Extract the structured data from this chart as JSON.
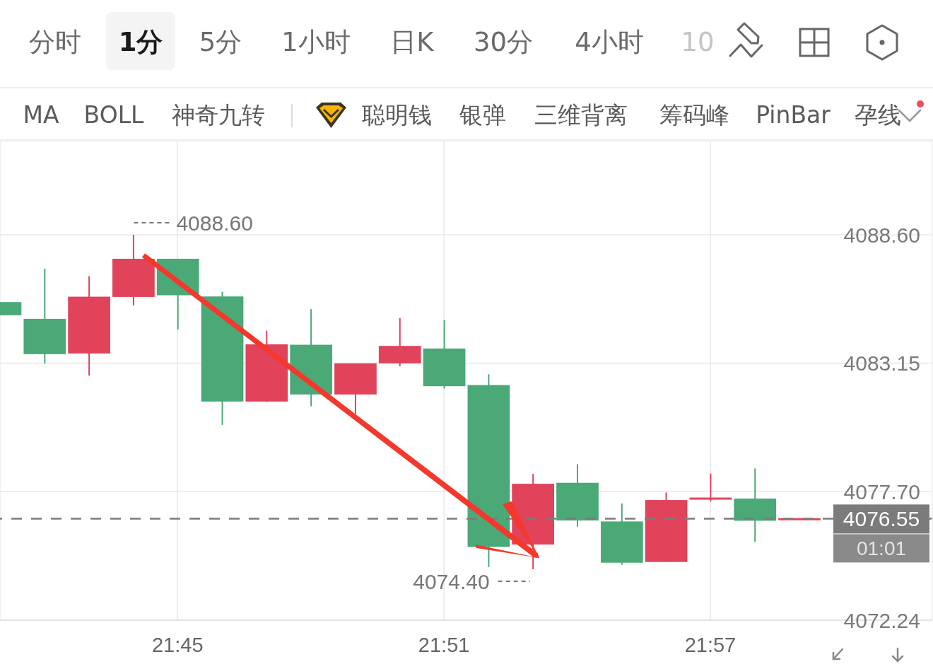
{
  "chart_data": {
    "type": "candlestick",
    "x": [
      21.68333,
      21.7,
      21.71667,
      21.73333,
      21.75,
      21.76667,
      21.78333,
      21.8,
      21.81667,
      21.83333,
      21.85,
      21.86667,
      21.88333,
      21.9,
      21.91667,
      21.93333,
      21.95,
      21.96667,
      21.98333
    ],
    "ohlc": [
      [
        4085.74,
        4085.74,
        4085.18,
        4085.18
      ],
      [
        4085.03,
        4087.16,
        4083.13,
        4083.53
      ],
      [
        4083.56,
        4086.84,
        4082.62,
        4085.97
      ],
      [
        4085.96,
        4088.6,
        4085.6,
        4087.58
      ],
      [
        4087.58,
        4087.58,
        4084.58,
        4086.03
      ],
      [
        4085.98,
        4086.18,
        4080.53,
        4081.52
      ],
      [
        4081.52,
        4084.53,
        4081.5,
        4083.95
      ],
      [
        4083.93,
        4085.44,
        4081.32,
        4081.82
      ],
      [
        4081.82,
        4083.14,
        4081.0,
        4083.14
      ],
      [
        4083.14,
        4085.06,
        4083.02,
        4083.88
      ],
      [
        4083.77,
        4084.98,
        4082.07,
        4082.17
      ],
      [
        4082.22,
        4082.68,
        4074.5,
        4075.35
      ],
      [
        4075.45,
        4078.45,
        4074.4,
        4078.03
      ],
      [
        4078.07,
        4078.86,
        4076.21,
        4076.47
      ],
      [
        4076.43,
        4077.19,
        4074.59,
        4074.68
      ],
      [
        4074.71,
        4077.66,
        4074.71,
        4077.34
      ],
      [
        4077.4,
        4078.46,
        4077.28,
        4077.4
      ],
      [
        4077.4,
        4078.68,
        4075.56,
        4076.46
      ],
      [
        4076.5,
        4076.55,
        4076.5,
        4076.55
      ]
    ],
    "colors": [
      "#4aa977",
      "#4aa977",
      "#e0435a",
      "#e0435a",
      "#4aa977",
      "#4aa977",
      "#e0435a",
      "#4aa977",
      "#e0435a",
      "#e0435a",
      "#4aa977",
      "#4aa977",
      "#e0435a",
      "#4aa977",
      "#4aa977",
      "#e0435a",
      "#e0435a",
      "#4aa977",
      "#e0435a"
    ],
    "xlim": [
      21.68333,
      22.03333
    ],
    "xticks": [
      {
        "value": 21.75,
        "label": "21:45"
      },
      {
        "value": 21.85,
        "label": "21:51"
      },
      {
        "value": 21.95,
        "label": "21:57"
      }
    ],
    "ylim": [
      4072.24,
      4092.56
    ],
    "yticks": [
      4072.24,
      {
        "value": 4077.7,
        "label": "4077.70"
      },
      4083.15,
      {
        "value": 4088.6,
        "label": "4088.60"
      }
    ],
    "grid": true,
    "ref_lines": [
      {
        "axis": "y",
        "value": 4076.55,
        "label": "4076.55",
        "color": "#7b7b7b",
        "line_style": "dashed"
      }
    ],
    "annotations": [
      {
        "text": "4088.60",
        "x": 21.73333,
        "y": 4088.6
      },
      {
        "text": "4074.40",
        "x": 21.88333,
        "y": 4074.4
      },
      "01:01",
      "分时",
      "1分",
      "5分",
      "1小时",
      "日K",
      "30分",
      "4小时",
      "10",
      "MA",
      "BOLL",
      "神奇九转",
      "聪明钱",
      "银弹",
      "三维背离",
      "筹码峰",
      "PinBar",
      "孕线"
    ]
  }
}
